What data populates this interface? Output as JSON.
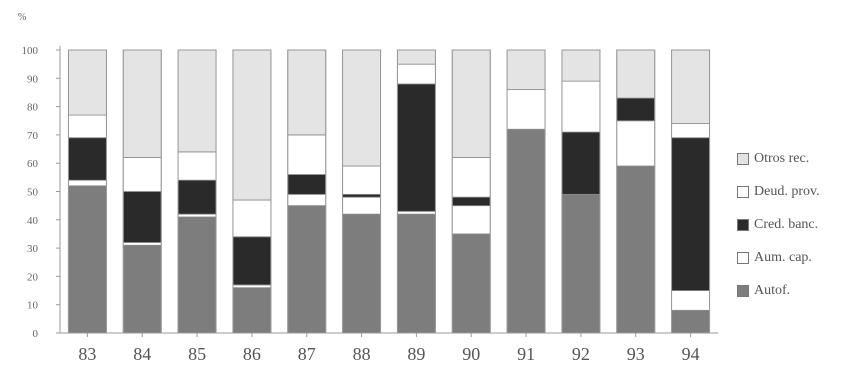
{
  "chart_data": {
    "type": "bar",
    "stacked": true,
    "unit_label": "%",
    "categories": [
      "83",
      "84",
      "85",
      "86",
      "87",
      "88",
      "89",
      "90",
      "91",
      "92",
      "93",
      "94"
    ],
    "ylim": [
      0,
      100
    ],
    "yticks": [
      "0",
      "10",
      "20",
      "30",
      "40",
      "50",
      "60",
      "70",
      "80",
      "90",
      "100"
    ],
    "series": [
      {
        "name": "Autof.",
        "color": "#7d7d7d",
        "values": [
          52,
          31,
          41,
          16,
          45,
          42,
          42,
          35,
          72,
          49,
          59,
          8
        ]
      },
      {
        "name": "Aum. cap.",
        "color": "#ffffff",
        "values": [
          2,
          1,
          1,
          1,
          4,
          6,
          1,
          10,
          0,
          0,
          16,
          7
        ]
      },
      {
        "name": "Cred. banc.",
        "color": "#2a2a2a",
        "values": [
          15,
          18,
          12,
          17,
          7,
          1,
          45,
          3,
          0,
          22,
          8,
          54
        ]
      },
      {
        "name": "Deud. prov.",
        "color": "#ffffff",
        "values": [
          8,
          12,
          10,
          13,
          14,
          10,
          7,
          14,
          14,
          18,
          0,
          5
        ]
      },
      {
        "name": "Otros rec.",
        "color": "#e4e4e4",
        "values": [
          23,
          38,
          36,
          53,
          30,
          41,
          5,
          38,
          14,
          11,
          17,
          26
        ]
      }
    ],
    "legend_position": "right",
    "grid": false
  },
  "legend": {
    "items": [
      {
        "label": "Otros rec.",
        "color": "#e4e4e4"
      },
      {
        "label": "Deud. prov.",
        "color": "#ffffff"
      },
      {
        "label": "Cred. banc.",
        "color": "#2a2a2a"
      },
      {
        "label": "Aum. cap.",
        "color": "#ffffff"
      },
      {
        "label": "Autof.",
        "color": "#7d7d7d"
      }
    ]
  }
}
